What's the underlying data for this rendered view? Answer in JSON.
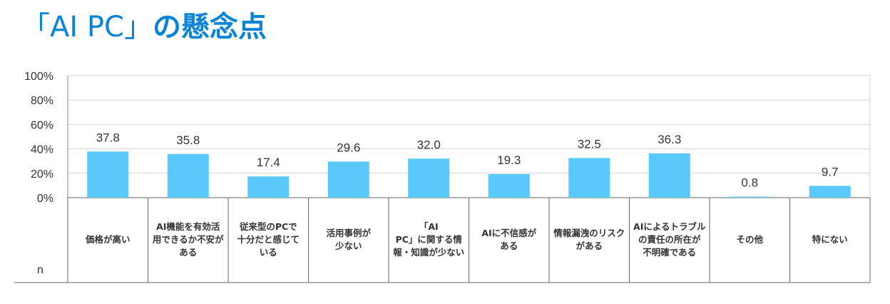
{
  "title_quote_open": "「",
  "title_main": "AI PC",
  "title_quote_close": "」",
  "title_suffix": "の懸念点",
  "title_color": "#0a84d6",
  "bar_color": "#5ac8fa",
  "n_label": "n",
  "chart_data": {
    "type": "bar",
    "categories": [
      "価格が高い",
      "AI機能を有効活\n用できるか不安が\nある",
      "従来型のPCで\n十分だと感じて\nいる",
      "活用事例が\n少ない",
      "「AI\nPC」に関する情\n報・知識が少ない",
      "AIに不信感が\nある",
      "情報漏洩のリスク\nがある",
      "AIによるトラブル\nの責任の所在が\n不明確である",
      "その他",
      "特にない"
    ],
    "values": [
      37.8,
      35.8,
      17.4,
      29.6,
      32.0,
      19.3,
      32.5,
      36.3,
      0.8,
      9.7
    ],
    "value_labels": [
      "37.8",
      "35.8",
      "17.4",
      "29.6",
      "32.0",
      "19.3",
      "32.5",
      "36.3",
      "0.8",
      "9.7"
    ],
    "yticks": [
      "0%",
      "20%",
      "40%",
      "60%",
      "80%",
      "100%"
    ],
    "ylim": [
      0,
      100
    ],
    "grid": true
  }
}
